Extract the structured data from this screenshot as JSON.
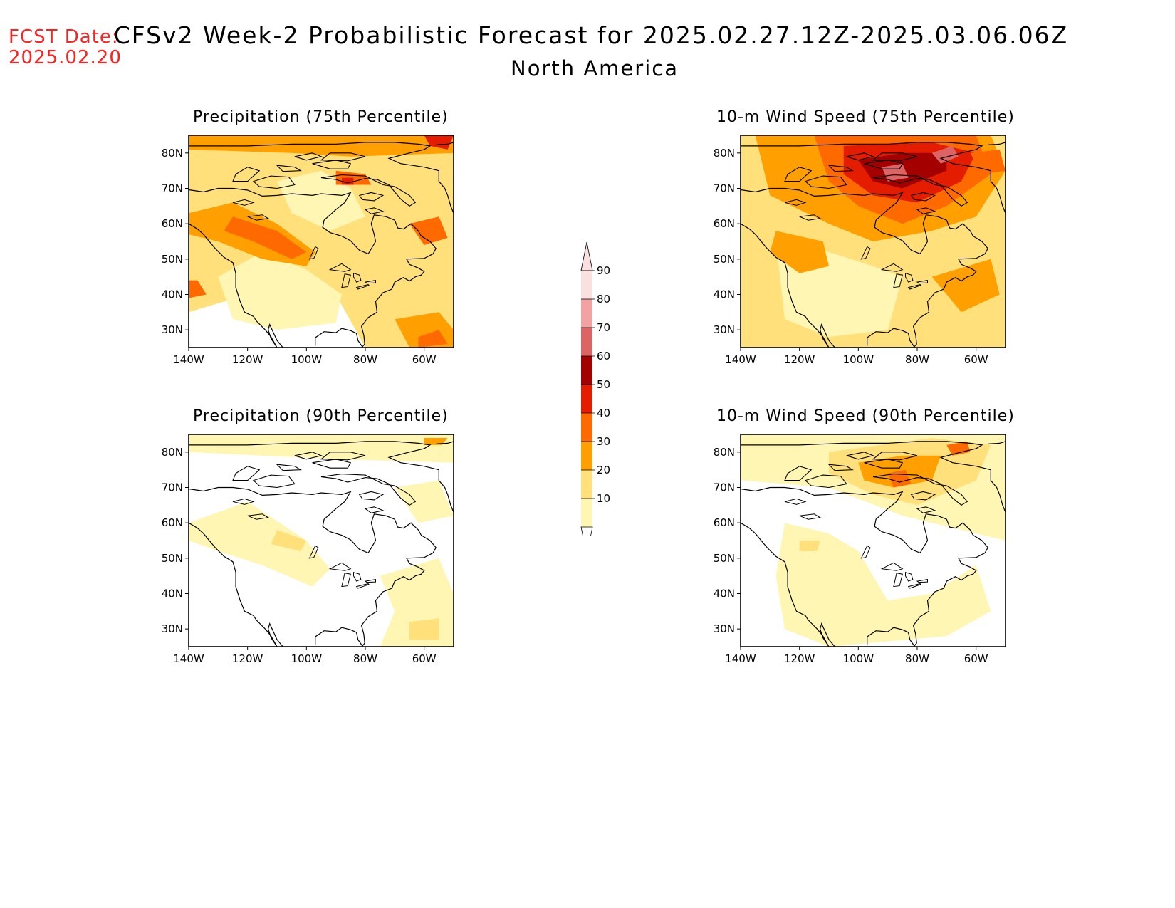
{
  "header": {
    "fcst_label": "FCST Date:",
    "fcst_date": "2025.02.20",
    "title": "CFSv2 Week-2 Probabilistic Forecast for 2025.02.27.12Z-2025.03.06.06Z",
    "region": "North America"
  },
  "axes": {
    "lat_labels": [
      "80N",
      "70N",
      "60N",
      "50N",
      "40N",
      "30N"
    ],
    "lon_labels": [
      "140W",
      "120W",
      "100W",
      "80W",
      "60W"
    ]
  },
  "colorbar": {
    "levels": [
      "90",
      "80",
      "70",
      "60",
      "50",
      "40",
      "30",
      "20",
      "10"
    ],
    "colors": [
      "#fbe0e0",
      "#f2a2a2",
      "#dc6464",
      "#a50000",
      "#e41c00",
      "#ff6a00",
      "#ffa000",
      "#ffe07a",
      "#fff6b4"
    ]
  },
  "palette": {
    "c10": "#fff6b4",
    "c20": "#ffe07a",
    "c30": "#ffa000",
    "c40": "#ff6a00",
    "c50": "#e41c00",
    "c60": "#a50000",
    "c70": "#dc6464",
    "c80": "#f2a2a2",
    "c90": "#fbe0e0",
    "coast": "#000000"
  },
  "panels": [
    {
      "id": "precip75",
      "title": "Precipitation (75th Percentile)"
    },
    {
      "id": "wind75",
      "title": "10-m Wind Speed (75th Percentile)"
    },
    {
      "id": "precip90",
      "title": "Precipitation (90th Percentile)"
    },
    {
      "id": "wind90",
      "title": "10-m Wind Speed (90th Percentile)"
    }
  ]
}
